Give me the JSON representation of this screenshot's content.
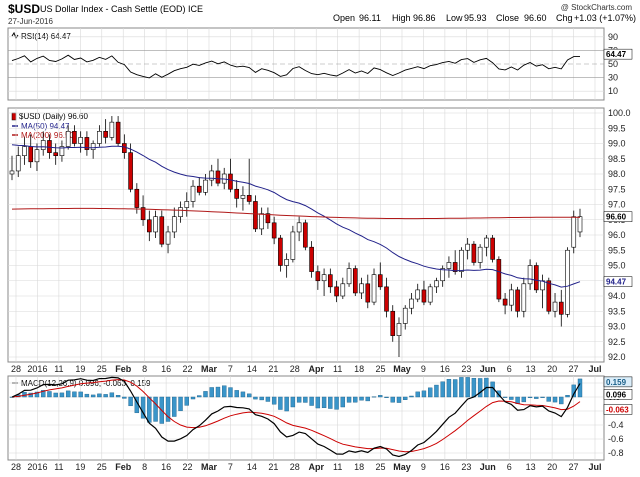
{
  "header": {
    "symbol": "$USD",
    "description": "US Dollar Index - Cash Settle (EOD) ICE",
    "date": "27-Jun-2016",
    "watermark": "@ StockCharts.com",
    "open_label": "Open",
    "open": "96.11",
    "high_label": "High",
    "high": "96.86",
    "low_label": "Low",
    "low": "95.93",
    "close_label": "Close",
    "close": "96.60",
    "chg_label": "Chg",
    "chg": "+1.03 (+1.07%)"
  },
  "rsi": {
    "label": "RSI(14) 64.47",
    "value_tag": "64.47",
    "ticks": [
      "90",
      "70",
      "50",
      "30",
      "10"
    ]
  },
  "price": {
    "legend_symbol": "$USD (Daily) 96.60",
    "legend_ma50": "MA(50) 94.47",
    "legend_ma200": "MA(200) 96.50",
    "close_tag": "96.60",
    "ma50_tag": "94.47",
    "ticks": [
      "100.0",
      "99.5",
      "99.0",
      "98.5",
      "98.0",
      "97.5",
      "97.0",
      "96.5",
      "96.0",
      "95.5",
      "95.0",
      "94.5",
      "94.0",
      "93.5",
      "93.0",
      "92.5",
      "92.0"
    ]
  },
  "macd": {
    "label": "MACD(12,26,9) 0.096, -0.063, 0.159",
    "tag_hist": "0.159",
    "tag_macd": "0.096",
    "tag_signal": "-0.063",
    "ticks": [
      "0.2",
      "0.0",
      "-0.2",
      "-0.4",
      "-0.6",
      "-0.8"
    ]
  },
  "x_axis": {
    "ticks": [
      "28",
      "2016",
      "11",
      "19",
      "25",
      "Feb",
      "8",
      "16",
      "22",
      "Mar",
      "7",
      "14",
      "21",
      "28",
      "Apr",
      "11",
      "18",
      "25",
      "May",
      "9",
      "16",
      "23",
      "Jun",
      "6",
      "13",
      "20",
      "27",
      "Jul"
    ]
  },
  "colors": {
    "up": "#ffffff",
    "down": "#cc0000",
    "ma50": "#22228a",
    "ma200": "#b01818",
    "hist": "#3a95c9",
    "macd": "#000000",
    "signal": "#cc0000",
    "grid": "#d8d8d8"
  },
  "chart_data": [
    {
      "type": "candlestick",
      "title": "$USD (Daily) 96.60",
      "x_start": "2015-12-28",
      "x_end": "2016-06-27",
      "ylim": [
        92.0,
        100.0
      ],
      "ohlc": [
        [
          98.0,
          98.6,
          97.8,
          98.1
        ],
        [
          98.1,
          98.9,
          97.9,
          98.6
        ],
        [
          98.6,
          99.2,
          98.3,
          98.9
        ],
        [
          98.9,
          99.3,
          98.2,
          98.4
        ],
        [
          98.4,
          99.0,
          98.1,
          98.8
        ],
        [
          98.8,
          99.4,
          98.6,
          99.1
        ],
        [
          99.1,
          99.3,
          98.5,
          98.7
        ],
        [
          98.7,
          99.0,
          98.3,
          98.6
        ],
        [
          98.6,
          99.1,
          98.4,
          98.9
        ],
        [
          98.9,
          99.6,
          98.8,
          99.4
        ],
        [
          99.4,
          99.6,
          98.9,
          99.0
        ],
        [
          99.0,
          99.4,
          98.7,
          99.2
        ],
        [
          99.2,
          99.4,
          98.6,
          98.8
        ],
        [
          98.8,
          99.1,
          98.5,
          99.0
        ],
        [
          99.0,
          99.6,
          98.9,
          99.4
        ],
        [
          99.4,
          99.8,
          99.0,
          99.2
        ],
        [
          99.2,
          99.9,
          99.1,
          99.7
        ],
        [
          99.7,
          99.9,
          98.9,
          99.0
        ],
        [
          99.0,
          99.3,
          98.5,
          98.7
        ],
        [
          98.7,
          99.0,
          97.4,
          97.5
        ],
        [
          97.5,
          97.7,
          96.7,
          96.9
        ],
        [
          96.9,
          97.3,
          96.3,
          96.5
        ],
        [
          96.5,
          96.8,
          95.8,
          96.1
        ],
        [
          96.1,
          96.8,
          95.9,
          96.6
        ],
        [
          96.6,
          96.8,
          95.6,
          95.7
        ],
        [
          95.7,
          96.3,
          95.4,
          96.1
        ],
        [
          96.1,
          96.9,
          95.9,
          96.6
        ],
        [
          96.6,
          97.1,
          96.4,
          96.9
        ],
        [
          96.9,
          97.4,
          96.6,
          97.1
        ],
        [
          97.1,
          97.8,
          96.9,
          97.6
        ],
        [
          97.6,
          97.9,
          97.3,
          97.4
        ],
        [
          97.4,
          98.0,
          97.3,
          97.8
        ],
        [
          97.8,
          98.3,
          97.6,
          98.1
        ],
        [
          98.1,
          98.5,
          97.6,
          97.7
        ],
        [
          97.7,
          98.2,
          97.5,
          98.0
        ],
        [
          98.0,
          98.5,
          97.4,
          97.5
        ],
        [
          97.5,
          97.8,
          96.9,
          97.2
        ],
        [
          97.2,
          97.6,
          96.8,
          97.3
        ],
        [
          97.3,
          98.5,
          97.0,
          97.1
        ],
        [
          97.1,
          97.3,
          96.1,
          96.2
        ],
        [
          96.2,
          96.9,
          96.0,
          96.7
        ],
        [
          96.7,
          96.9,
          96.2,
          96.4
        ],
        [
          96.4,
          96.6,
          95.7,
          95.9
        ],
        [
          95.9,
          96.0,
          94.8,
          95.0
        ],
        [
          95.0,
          95.4,
          94.6,
          95.2
        ],
        [
          95.2,
          96.3,
          95.1,
          96.1
        ],
        [
          96.1,
          96.6,
          95.8,
          96.4
        ],
        [
          96.4,
          96.5,
          95.5,
          95.6
        ],
        [
          95.6,
          95.8,
          94.6,
          94.8
        ],
        [
          94.8,
          95.0,
          94.2,
          94.5
        ],
        [
          94.5,
          94.9,
          94.0,
          94.7
        ],
        [
          94.7,
          94.9,
          94.1,
          94.3
        ],
        [
          94.3,
          94.5,
          93.8,
          94.0
        ],
        [
          94.0,
          94.6,
          93.9,
          94.4
        ],
        [
          94.4,
          95.1,
          94.3,
          94.9
        ],
        [
          94.9,
          95.0,
          94.0,
          94.1
        ],
        [
          94.1,
          94.6,
          93.9,
          94.4
        ],
        [
          94.4,
          94.7,
          93.6,
          93.8
        ],
        [
          93.8,
          94.9,
          93.7,
          94.7
        ],
        [
          94.7,
          95.1,
          94.2,
          94.3
        ],
        [
          94.3,
          94.6,
          93.3,
          93.5
        ],
        [
          93.5,
          93.7,
          92.5,
          92.7
        ],
        [
          92.7,
          93.3,
          92.0,
          93.1
        ],
        [
          93.1,
          93.7,
          92.9,
          93.6
        ],
        [
          93.6,
          94.1,
          93.4,
          93.9
        ],
        [
          93.9,
          94.4,
          93.8,
          94.2
        ],
        [
          94.2,
          94.5,
          93.7,
          93.8
        ],
        [
          93.8,
          94.4,
          93.7,
          94.3
        ],
        [
          94.3,
          94.6,
          94.1,
          94.5
        ],
        [
          94.5,
          95.0,
          94.3,
          94.9
        ],
        [
          94.9,
          95.3,
          94.6,
          95.1
        ],
        [
          95.1,
          95.5,
          94.7,
          94.8
        ],
        [
          94.8,
          95.6,
          94.6,
          95.5
        ],
        [
          95.5,
          95.9,
          95.2,
          95.7
        ],
        [
          95.7,
          95.8,
          95.0,
          95.1
        ],
        [
          95.1,
          95.7,
          94.9,
          95.6
        ],
        [
          95.6,
          96.0,
          95.3,
          95.9
        ],
        [
          95.9,
          96.0,
          95.1,
          95.2
        ],
        [
          95.2,
          95.3,
          93.8,
          93.9
        ],
        [
          93.9,
          94.1,
          93.4,
          93.7
        ],
        [
          93.7,
          94.4,
          93.5,
          94.2
        ],
        [
          94.2,
          94.3,
          93.3,
          93.5
        ],
        [
          93.5,
          94.6,
          93.3,
          94.4
        ],
        [
          94.4,
          95.2,
          94.2,
          95.0
        ],
        [
          95.0,
          95.1,
          94.1,
          94.2
        ],
        [
          94.2,
          94.7,
          93.6,
          94.5
        ],
        [
          94.5,
          94.6,
          93.4,
          93.5
        ],
        [
          93.5,
          94.1,
          93.3,
          93.8
        ],
        [
          93.8,
          94.2,
          93.0,
          93.4
        ],
        [
          93.4,
          95.6,
          93.3,
          95.5
        ],
        [
          95.6,
          96.8,
          95.4,
          96.6
        ],
        [
          96.1,
          96.86,
          95.93,
          96.6
        ]
      ],
      "ma50_last": 94.47,
      "ma200_last": 96.5
    },
    {
      "type": "line",
      "title": "RSI(14) 64.47",
      "ylim": [
        0,
        100
      ],
      "series": [
        {
          "name": "RSI(14)",
          "last": 64.47
        }
      ]
    },
    {
      "type": "line+bar",
      "title": "MACD(12,26,9) 0.096, -0.063, 0.159",
      "ylim": [
        -0.9,
        0.3
      ],
      "series": [
        {
          "name": "MACD",
          "last": 0.096
        },
        {
          "name": "Signal",
          "last": -0.063
        },
        {
          "name": "Histogram",
          "last": 0.159
        }
      ]
    }
  ]
}
